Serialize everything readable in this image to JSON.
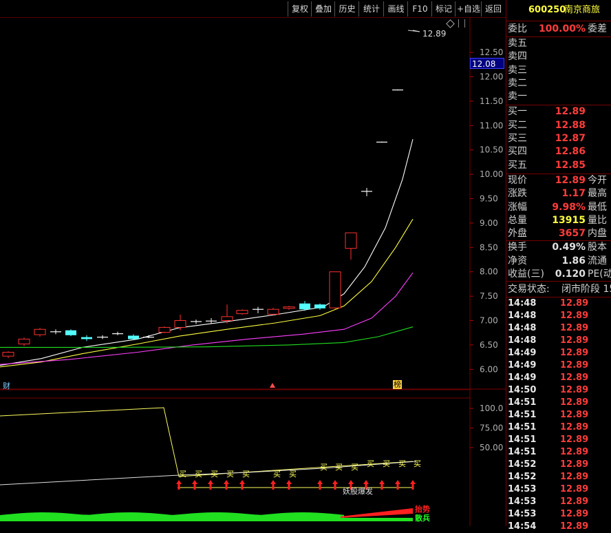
{
  "toolbar": {
    "buttons": [
      "复权",
      "叠加",
      "历史",
      "统计",
      "画线",
      "F10",
      "标记",
      "+自选",
      "返回"
    ]
  },
  "stock": {
    "code": "600250",
    "name": "南京商旅"
  },
  "quote": {
    "commission_ratio_label": "委比",
    "commission_ratio": "100.00%",
    "commission_diff_label": "委差",
    "sell": [
      {
        "label": "卖五",
        "price": ""
      },
      {
        "label": "卖四",
        "price": ""
      },
      {
        "label": "卖三",
        "price": ""
      },
      {
        "label": "卖二",
        "price": ""
      },
      {
        "label": "卖一",
        "price": ""
      }
    ],
    "buy": [
      {
        "label": "买一",
        "price": "12.89"
      },
      {
        "label": "买二",
        "price": "12.88"
      },
      {
        "label": "买三",
        "price": "12.87"
      },
      {
        "label": "买四",
        "price": "12.86"
      },
      {
        "label": "买五",
        "price": "12.85"
      }
    ],
    "stats1": [
      {
        "label": "现价",
        "value": "12.89",
        "right": "今开",
        "color": "red"
      },
      {
        "label": "涨跌",
        "value": "1.17",
        "right": "最高",
        "color": "red"
      },
      {
        "label": "涨幅",
        "value": "9.98%",
        "right": "最低",
        "color": "red"
      },
      {
        "label": "总量",
        "value": "13915",
        "right": "量比",
        "color": "yel"
      },
      {
        "label": "外盘",
        "value": "3657",
        "right": "内盘",
        "color": "red"
      }
    ],
    "stats2": [
      {
        "label": "换手",
        "value": "0.49%",
        "right": "股本"
      },
      {
        "label": "净资",
        "value": "1.86",
        "right": "流通"
      },
      {
        "label": "收益(三)",
        "value": "0.120",
        "right": "PE(动"
      }
    ],
    "trade_status_label": "交易状态:",
    "trade_status": "闭市阶段 15"
  },
  "ticks": [
    {
      "time": "14:48",
      "price": "12.89"
    },
    {
      "time": "14:48",
      "price": "12.89"
    },
    {
      "time": "14:48",
      "price": "12.89"
    },
    {
      "time": "14:48",
      "price": "12.89"
    },
    {
      "time": "14:49",
      "price": "12.89"
    },
    {
      "time": "14:49",
      "price": "12.89"
    },
    {
      "time": "14:49",
      "price": "12.89"
    },
    {
      "time": "14:50",
      "price": "12.89"
    },
    {
      "time": "14:51",
      "price": "12.89"
    },
    {
      "time": "14:51",
      "price": "12.89"
    },
    {
      "time": "14:51",
      "price": "12.89"
    },
    {
      "time": "14:51",
      "price": "12.89"
    },
    {
      "time": "14:51",
      "price": "12.89"
    },
    {
      "time": "14:52",
      "price": "12.89"
    },
    {
      "time": "14:52",
      "price": "12.89"
    },
    {
      "time": "14:53",
      "price": "12.89"
    },
    {
      "time": "14:53",
      "price": "12.89"
    },
    {
      "time": "14:53",
      "price": "12.89"
    },
    {
      "time": "14:54",
      "price": "12.89"
    }
  ],
  "chart": {
    "price_axis": [
      "12.50",
      "12.00",
      "11.50",
      "11.00",
      "10.50",
      "10.00",
      "9.50",
      "9.00",
      "8.50",
      "8.00",
      "7.50",
      "7.00",
      "6.50",
      "6.00"
    ],
    "current_price_label": "12.08",
    "high_marker": "12.89",
    "ind_axis": [
      "100.0",
      "75.00",
      "50.00"
    ],
    "markers": {
      "cai": "财",
      "bang": "榜"
    },
    "buy_label": "买",
    "burst_label": "妖股爆发",
    "legend": [
      {
        "text": "抬势",
        "color": "#ff2020"
      },
      {
        "text": "散兵",
        "color": "#20ff20"
      }
    ],
    "colors": {
      "up": "#ff3030",
      "down": "#54ffff",
      "ma1": "#ffffff",
      "ma2": "#ffff40",
      "ma3": "#ff40ff",
      "ma4": "#20e020"
    }
  }
}
